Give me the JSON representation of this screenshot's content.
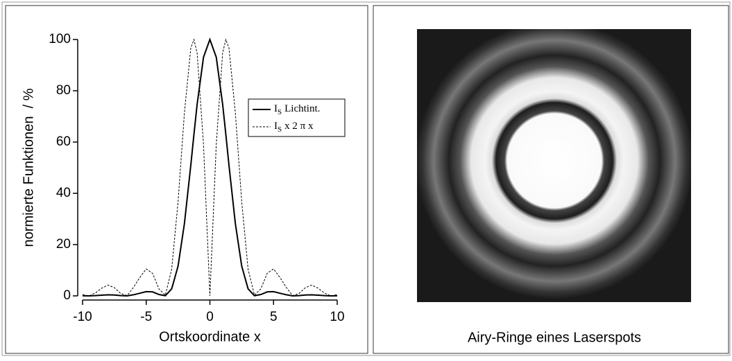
{
  "chart_data": {
    "type": "line",
    "x_label": "Ortskoordinate x",
    "y_label": "normierte Funktionen  / %",
    "x": [
      -10,
      -9.5,
      -9,
      -8.5,
      -8,
      -7.5,
      -7,
      -6.5,
      -6,
      -5.5,
      -5,
      -4.5,
      -4,
      -3.5,
      -3,
      -2.5,
      -2,
      -1.5,
      -1.25,
      -1,
      -0.5,
      0,
      0.5,
      1,
      1.25,
      1.5,
      2,
      2.5,
      3,
      3.5,
      4,
      4.5,
      5,
      5.5,
      6,
      6.5,
      7,
      7.5,
      8,
      8.5,
      9,
      9.5,
      10
    ],
    "series": [
      {
        "name": "Lichtint.",
        "symbol": "I",
        "subscript": "S",
        "color": "#000000",
        "dash": false,
        "values": [
          0.04,
          0,
          0.1,
          0.28,
          0.41,
          0.34,
          0.1,
          0.01,
          0.43,
          1.03,
          1.66,
          1.54,
          0.54,
          0.06,
          2.75,
          11.6,
          28.2,
          50.9,
          63.1,
          74.8,
          93.1,
          100,
          93.1,
          74.8,
          63.1,
          50.9,
          28.2,
          11.6,
          2.75,
          0.06,
          0.54,
          1.54,
          1.66,
          1.03,
          0.43,
          0.01,
          0.1,
          0.34,
          0.41,
          0.28,
          0.1,
          0,
          0.04
        ]
      },
      {
        "name": "x 2 π x",
        "symbol": "I",
        "subscript": "S",
        "color": "#000000",
        "dash": true,
        "values": [
          0.5,
          0,
          1.1,
          3.0,
          4.2,
          3.2,
          0.9,
          0.1,
          3.3,
          7.2,
          10.5,
          8.8,
          2.7,
          0.3,
          10.4,
          36.7,
          71.4,
          96.7,
          100,
          94.7,
          59,
          0,
          59,
          94.7,
          100,
          96.7,
          71.4,
          36.7,
          10.4,
          0.3,
          2.7,
          8.8,
          10.5,
          7.2,
          3.3,
          0.1,
          0.9,
          3.2,
          4.2,
          3.0,
          1.1,
          0,
          0.5
        ]
      }
    ],
    "xlim": [
      -10,
      10
    ],
    "xticks": [
      -10,
      -5,
      0,
      5,
      10
    ],
    "ylim": [
      0,
      100
    ],
    "yticks": [
      0,
      20,
      40,
      60,
      80,
      100
    ],
    "grid": false
  },
  "image_caption": "Airy-Ringe eines Laserspots"
}
